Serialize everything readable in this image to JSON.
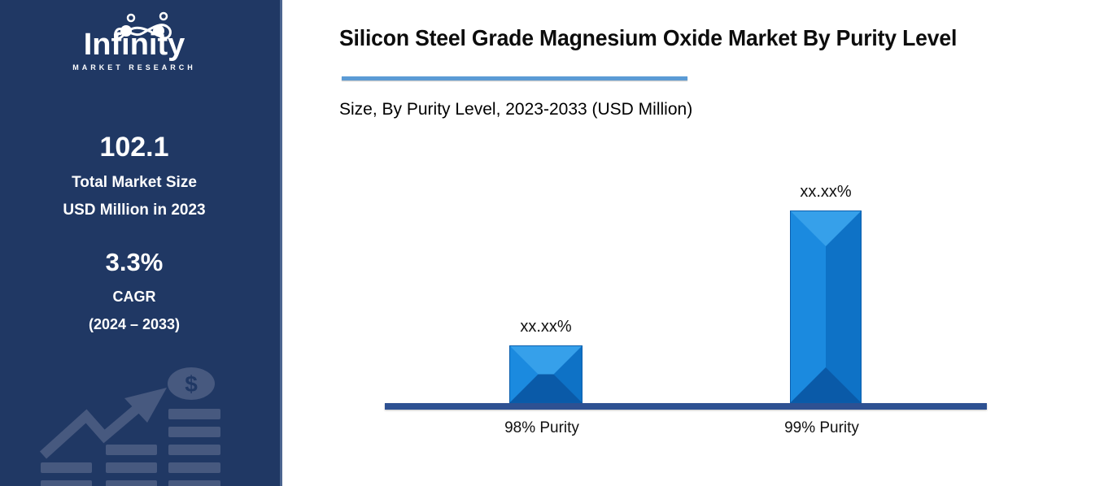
{
  "sidebar": {
    "logo": {
      "brand": "Infinity",
      "tagline": "MARKET RESEARCH"
    },
    "stat1": {
      "value": "102.1",
      "line1": "Total Market Size",
      "line2": "USD Million in 2023"
    },
    "stat2": {
      "value": "3.3%",
      "line1": "CAGR",
      "line2": "(2024 – 2033)"
    },
    "dollar_symbol": "$",
    "background_color": "#203864",
    "decor_color": "#47597F"
  },
  "header": {
    "title": "Silicon Steel Grade Magnesium Oxide Market By Purity Level",
    "subtitle": "Size, By Purity Level, 2023-2033 (USD Million)",
    "accent_color": "#5B9BD5"
  },
  "chart_data": {
    "type": "bar",
    "title": "Silicon Steel Grade Magnesium Oxide Market By Purity Level",
    "subtitle": "Size, By Purity Level, 2023-2033 (USD Million)",
    "categories": [
      "98% Purity",
      "99% Purity"
    ],
    "value_labels": [
      "xx.xx%",
      "xx.xx%"
    ],
    "values_masked": true,
    "relative_heights": [
      0.3,
      1.0
    ],
    "grid": false,
    "legend": "none",
    "baseline_color": "#2E5192",
    "bar_colors": {
      "face": "#1080D8",
      "top": "#36A0EA",
      "left": "#1B8ADF",
      "right": "#0E72C6",
      "bottom": "#0A5AA8",
      "outline": "#0B5FAE"
    }
  }
}
